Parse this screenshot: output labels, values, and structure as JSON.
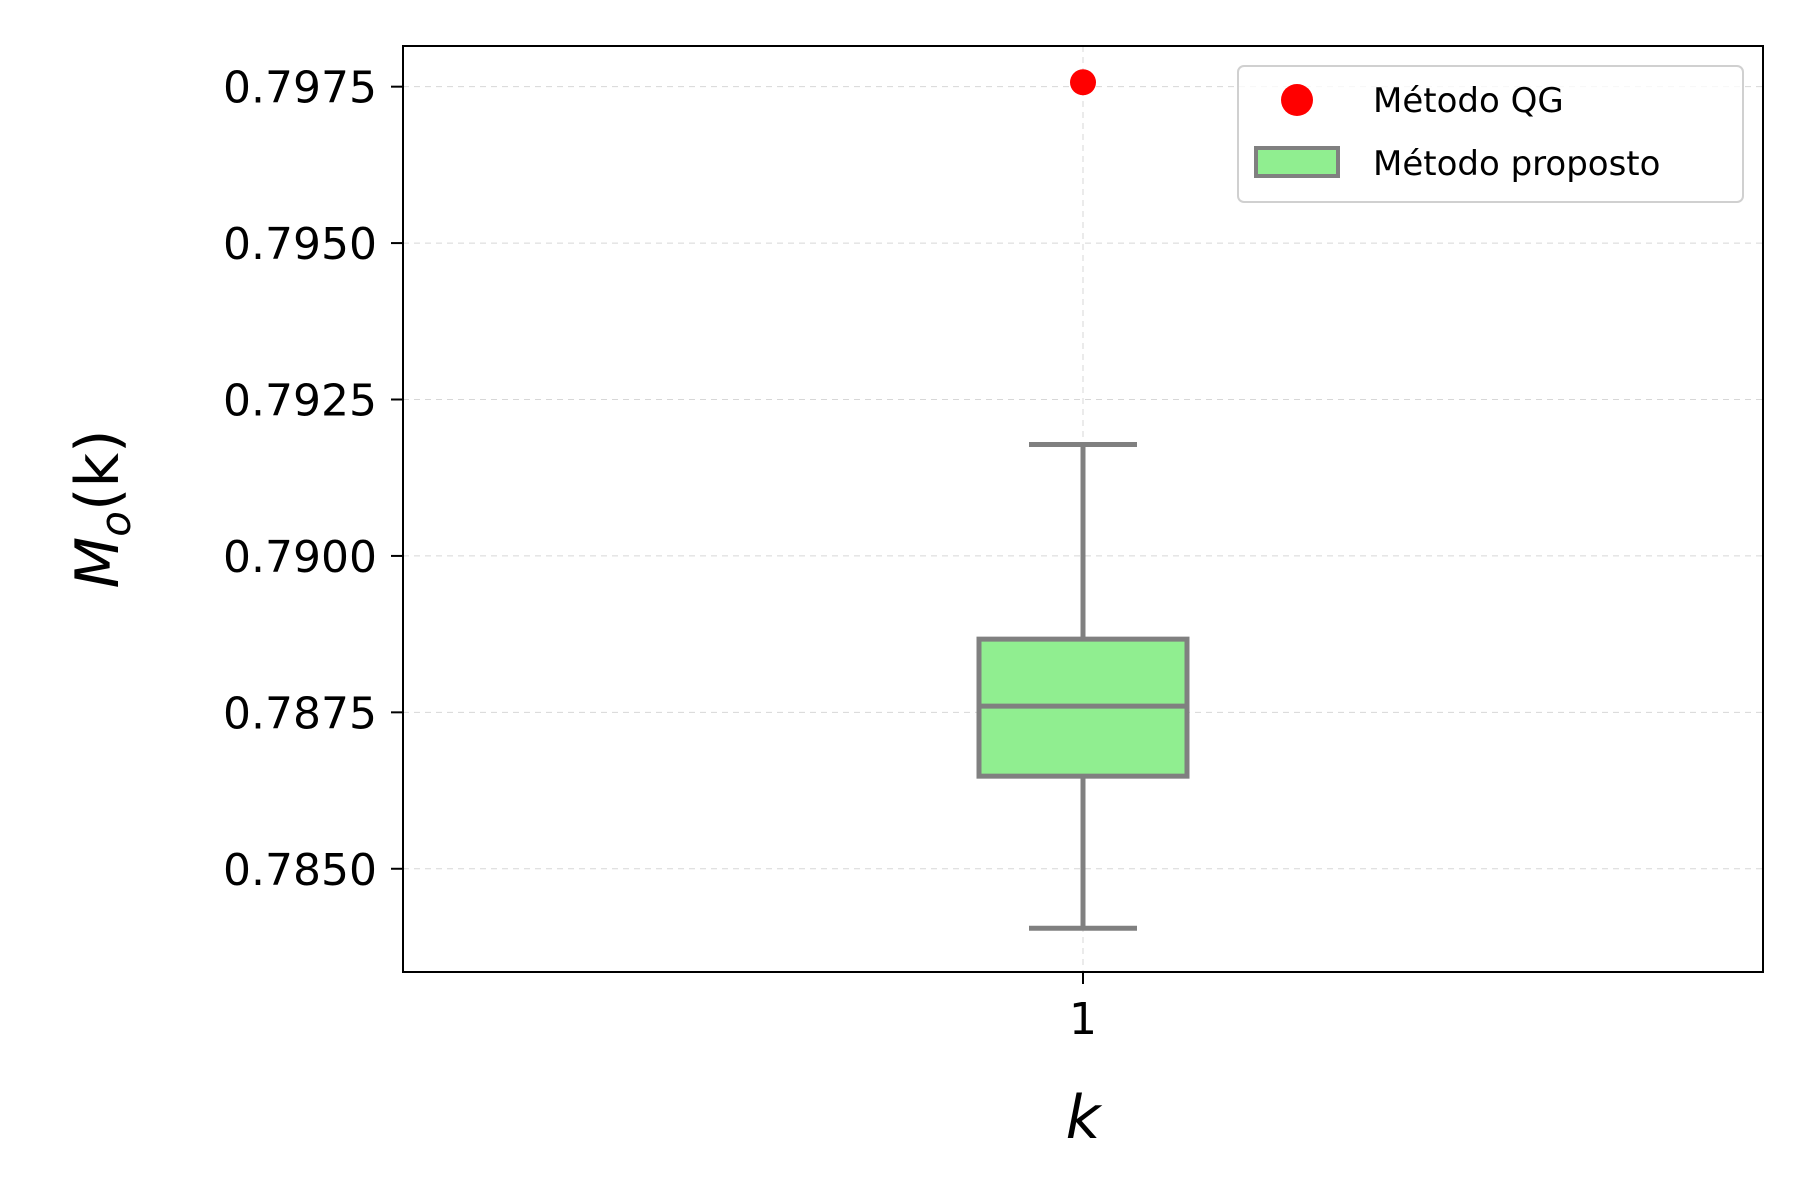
{
  "chart_data": {
    "type": "box",
    "title": "",
    "xlabel": "k",
    "ylabel": "M_o(k)",
    "ylabel_display": {
      "base": "M",
      "subscript": "o",
      "arg": "(k)"
    },
    "categories": [
      "1"
    ],
    "ylim": [
      0.78335,
      0.79815
    ],
    "yticks": [
      0.785,
      0.7875,
      0.79,
      0.7925,
      0.795,
      0.7975
    ],
    "ytick_labels": [
      "0.7850",
      "0.7875",
      "0.7900",
      "0.7925",
      "0.7950",
      "0.7975"
    ],
    "grid": true,
    "legend_position": "top-right",
    "series": [
      {
        "name": "Método QG",
        "kind": "scatter",
        "color": "#ff0000",
        "points": [
          {
            "x": "1",
            "y": 0.79757
          }
        ]
      },
      {
        "name": "Método proposto",
        "kind": "box",
        "fill": "#90ee90",
        "edge": "#808080",
        "boxes": [
          {
            "x": "1",
            "whisker_low": 0.78405,
            "q1": 0.78648,
            "median": 0.7876,
            "q3": 0.78867,
            "whisker_high": 0.79178
          }
        ]
      }
    ]
  }
}
